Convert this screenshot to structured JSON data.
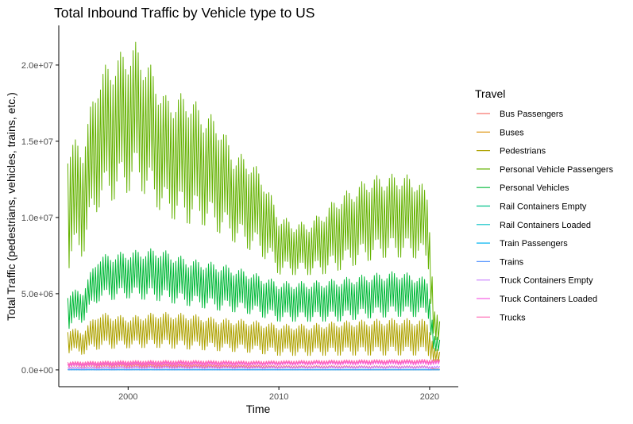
{
  "chart_data": {
    "type": "line",
    "title": "Total Inbound Traffic by Vehicle type to US",
    "xlabel": "Time",
    "ylabel": "Total Traffic (pedestrians, vehicles, trains, etc.)",
    "xlim": [
      1995.4,
      2021.9
    ],
    "ylim": [
      -1100000,
      22600000
    ],
    "xticks": [
      2000,
      2010,
      2020
    ],
    "xtick_labels": [
      "2000",
      "2010",
      "2020"
    ],
    "yticks": [
      0,
      5000000,
      10000000,
      15000000,
      20000000
    ],
    "ytick_labels": [
      "0.0e+00",
      "5.0e+06",
      "1.0e+07",
      "1.5e+07",
      "2.0e+07"
    ],
    "grid": false,
    "legend_title": "Travel",
    "legend_position": "right",
    "series": [
      {
        "name": "Bus Passengers",
        "color": "#F8766D",
        "x": [
          1996,
          1998,
          2000,
          2002,
          2004,
          2006,
          2008,
          2010,
          2012,
          2014,
          2016,
          2018,
          2019.9,
          2020.3,
          2020.7
        ],
        "min": [
          150000,
          140000,
          140000,
          130000,
          130000,
          120000,
          110000,
          100000,
          100000,
          100000,
          100000,
          100000,
          100000,
          20000,
          20000
        ],
        "max": [
          450000,
          430000,
          420000,
          400000,
          380000,
          360000,
          330000,
          300000,
          290000,
          290000,
          280000,
          280000,
          280000,
          80000,
          60000
        ]
      },
      {
        "name": "Buses",
        "color": "#DB8E00",
        "x": [
          1996,
          2010,
          2020.7
        ],
        "min": [
          10000,
          10000,
          2000
        ],
        "max": [
          30000,
          25000,
          10000
        ]
      },
      {
        "name": "Pedestrians",
        "color": "#AEA200",
        "x": [
          1996,
          1997,
          1998,
          2000,
          2002,
          2004,
          2006,
          2008,
          2010,
          2012,
          2014,
          2016,
          2018,
          2019.9,
          2020.3,
          2020.7
        ],
        "min": [
          1000000,
          900000,
          1200000,
          1300000,
          1300000,
          1200000,
          1100000,
          1000000,
          800000,
          800000,
          800000,
          800000,
          800000,
          800000,
          300000,
          300000
        ],
        "max": [
          2800000,
          2600000,
          3800000,
          3500000,
          3800000,
          3700000,
          3400000,
          3300000,
          3000000,
          3000000,
          3200000,
          3300000,
          3400000,
          3300000,
          1500000,
          1200000
        ]
      },
      {
        "name": "Personal Vehicle Passengers",
        "color": "#64B200",
        "x": [
          1996,
          1997,
          1998,
          1999,
          2000,
          2000.5,
          2001.5,
          2002.5,
          2004,
          2005,
          2006,
          2007,
          2008,
          2009,
          2010,
          2011,
          2012,
          2013,
          2014,
          2015,
          2016,
          2017,
          2018,
          2019,
          2019.9,
          2020.3,
          2020.7
        ],
        "min": [
          6000000,
          7000000,
          10000000,
          10500000,
          11000000,
          11500000,
          10500000,
          9500000,
          9000000,
          9000000,
          8500000,
          8000000,
          7500000,
          7000000,
          6000000,
          6000000,
          6000000,
          6000000,
          6200000,
          6500000,
          6800000,
          7000000,
          7000000,
          7000000,
          6500000,
          1200000,
          1500000
        ],
        "max": [
          15200000,
          15000000,
          19500000,
          20500000,
          21200000,
          21500000,
          20000000,
          18000000,
          18200000,
          17000000,
          16500000,
          14300000,
          14000000,
          12700000,
          10200000,
          9700000,
          9700000,
          10500000,
          11500000,
          12000000,
          12700000,
          12800000,
          12900000,
          12700000,
          11800000,
          4000000,
          3200000
        ]
      },
      {
        "name": "Personal Vehicles",
        "color": "#00B938",
        "x": [
          1996,
          1997,
          1998,
          2000,
          2002,
          2004,
          2006,
          2008,
          2010,
          2012,
          2014,
          2016,
          2018,
          2019.9,
          2020.3,
          2020.7
        ],
        "min": [
          2500000,
          3000000,
          4300000,
          4500000,
          4300000,
          4000000,
          3700000,
          3500000,
          3000000,
          3000000,
          3000000,
          3200000,
          3300000,
          3300000,
          800000,
          1000000
        ],
        "max": [
          5200000,
          5300000,
          7500000,
          7800000,
          8000000,
          7300000,
          7000000,
          6500000,
          5800000,
          5800000,
          6000000,
          6300000,
          6500000,
          6000000,
          2300000,
          2000000
        ]
      },
      {
        "name": "Rail Containers Empty",
        "color": "#00C08B",
        "x": [
          1996,
          2020.7
        ],
        "min": [
          5000,
          5000
        ],
        "max": [
          20000,
          20000
        ]
      },
      {
        "name": "Rail Containers Loaded",
        "color": "#00BFC4",
        "x": [
          1996,
          2020.7
        ],
        "min": [
          10000,
          10000
        ],
        "max": [
          40000,
          40000
        ]
      },
      {
        "name": "Train Passengers",
        "color": "#00B4F0",
        "x": [
          1996,
          2020.7
        ],
        "min": [
          2000,
          1000
        ],
        "max": [
          20000,
          10000
        ]
      },
      {
        "name": "Trains",
        "color": "#619CFF",
        "x": [
          1996,
          2020.7
        ],
        "min": [
          2000,
          2000
        ],
        "max": [
          4000,
          4000
        ]
      },
      {
        "name": "Truck Containers Empty",
        "color": "#C77CFF",
        "x": [
          1996,
          2002,
          2008,
          2014,
          2020.7
        ],
        "min": [
          40000,
          60000,
          60000,
          70000,
          60000
        ],
        "max": [
          200000,
          250000,
          230000,
          240000,
          260000
        ]
      },
      {
        "name": "Truck Containers Loaded",
        "color": "#F564E3",
        "x": [
          1996,
          2000,
          2004,
          2008,
          2012,
          2016,
          2020.7
        ],
        "min": [
          200000,
          250000,
          260000,
          250000,
          280000,
          300000,
          300000
        ],
        "max": [
          450000,
          520000,
          540000,
          520000,
          560000,
          600000,
          620000
        ]
      },
      {
        "name": "Trucks",
        "color": "#FF64B0",
        "x": [
          1996,
          2000,
          2004,
          2008,
          2012,
          2016,
          2020.7
        ],
        "min": [
          300000,
          350000,
          360000,
          340000,
          370000,
          400000,
          400000
        ],
        "max": [
          550000,
          620000,
          640000,
          600000,
          640000,
          680000,
          700000
        ]
      }
    ]
  }
}
